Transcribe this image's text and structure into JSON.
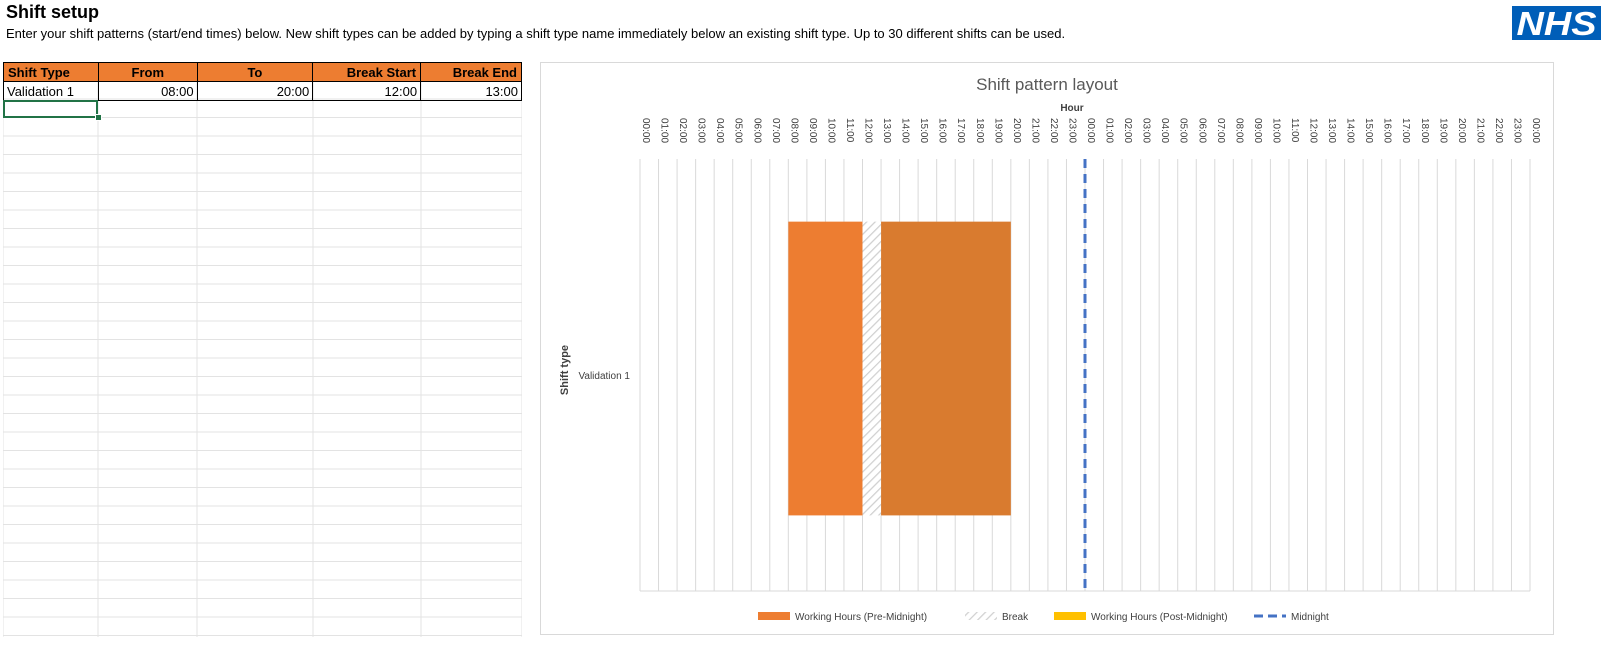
{
  "header": {
    "title": "Shift setup",
    "subtitle": "Enter your shift patterns (start/end times) below. New shift types can be added by typing a shift type name immediately below an existing shift type. Up to 30 different shifts can be used.",
    "logo_text": "NHS"
  },
  "table": {
    "columns": [
      "Shift Type",
      "From",
      "To",
      "Break Start",
      "Break End"
    ],
    "rows": [
      [
        "Validation 1",
        "08:00",
        "20:00",
        "12:00",
        "13:00"
      ]
    ]
  },
  "colors": {
    "header_fill": "#ed7d31",
    "pre_midnight": "#ed7d31",
    "pre_midnight_after_break": "#d97b2f",
    "post_midnight": "#ffc000",
    "midnight_line": "#4472c4",
    "nhs_blue": "#005eb8"
  },
  "chart_data": {
    "type": "bar",
    "orientation": "horizontal-timeline",
    "title": "Shift pattern layout",
    "xlabel": "Hour",
    "ylabel": "Shift type",
    "x_tick_labels": [
      "00:00",
      "01:00",
      "02:00",
      "03:00",
      "04:00",
      "05:00",
      "06:00",
      "07:00",
      "08:00",
      "09:00",
      "10:00",
      "11:00",
      "12:00",
      "13:00",
      "14:00",
      "15:00",
      "16:00",
      "17:00",
      "18:00",
      "19:00",
      "20:00",
      "21:00",
      "22:00",
      "23:00",
      "00:00",
      "01:00",
      "02:00",
      "03:00",
      "04:00",
      "05:00",
      "06:00",
      "07:00",
      "08:00",
      "09:00",
      "10:00",
      "11:00",
      "12:00",
      "13:00",
      "14:00",
      "15:00",
      "16:00",
      "17:00",
      "18:00",
      "19:00",
      "20:00",
      "21:00",
      "22:00",
      "23:00",
      "00:00"
    ],
    "xlim": [
      0,
      48
    ],
    "grid": true,
    "categories": [
      "Validation 1"
    ],
    "series": [
      {
        "name": "Working Hours (Pre-Midnight)",
        "segments": [
          [
            8,
            12
          ],
          [
            13,
            20
          ]
        ]
      },
      {
        "name": "Break",
        "segments": [
          [
            12,
            13
          ]
        ]
      },
      {
        "name": "Working Hours (Post-Midnight)",
        "segments": []
      },
      {
        "name": "Midnight",
        "x": 24
      }
    ],
    "legend_position": "bottom"
  }
}
